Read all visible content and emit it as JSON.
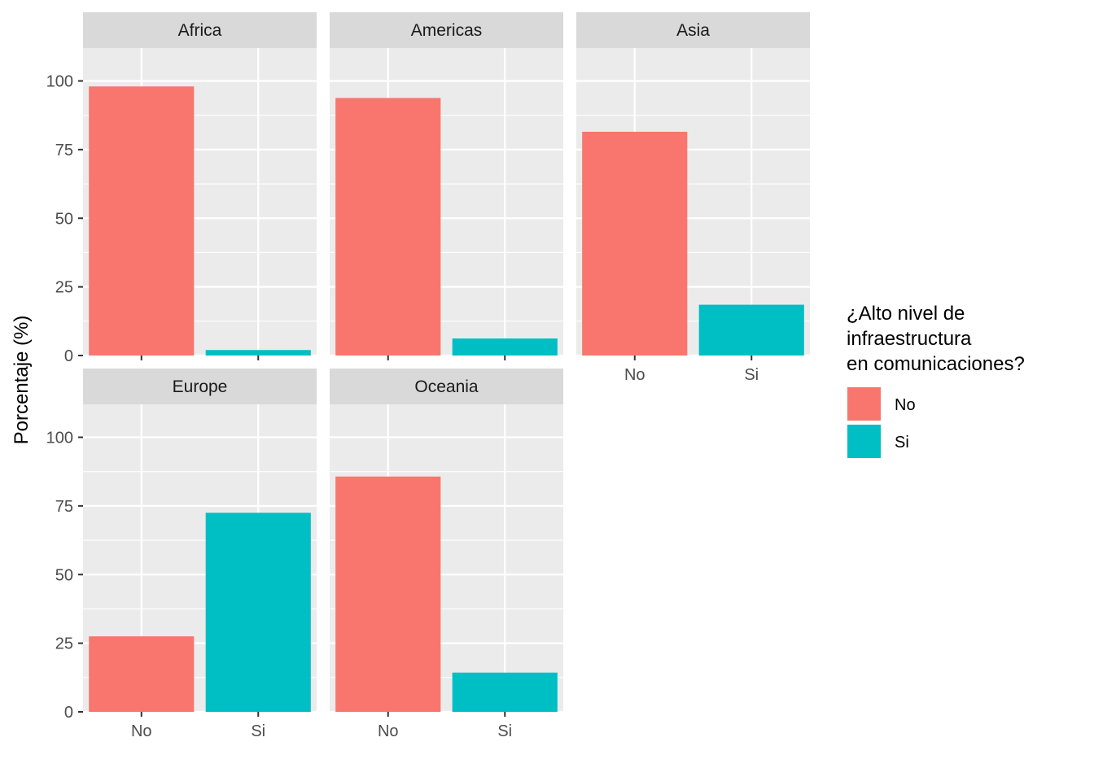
{
  "chart_data": {
    "type": "bar",
    "facet_by": "continent",
    "ylabel": "Porcentaje (%)",
    "xlabel": "",
    "ylim": [
      0,
      112
    ],
    "yticks": [
      0,
      25,
      50,
      75,
      100
    ],
    "categories": [
      "No",
      "Si"
    ],
    "colors": {
      "No": "#F8766D",
      "Si": "#00BFC4"
    },
    "legend": {
      "title_lines": [
        "¿Alto nivel de",
        " infraestructura",
        " en comunicaciones?"
      ],
      "placement": "right",
      "entries": [
        {
          "label": "No",
          "color": "#F8766D"
        },
        {
          "label": "Si",
          "color": "#00BFC4"
        }
      ]
    },
    "facets": [
      {
        "name": "Africa",
        "values": [
          98,
          2
        ]
      },
      {
        "name": "Americas",
        "values": [
          93.8,
          6.2
        ]
      },
      {
        "name": "Asia",
        "values": [
          81.5,
          18.5
        ]
      },
      {
        "name": "Europe",
        "values": [
          27.5,
          72.5
        ]
      },
      {
        "name": "Oceania",
        "values": [
          85.7,
          14.3
        ]
      }
    ]
  }
}
